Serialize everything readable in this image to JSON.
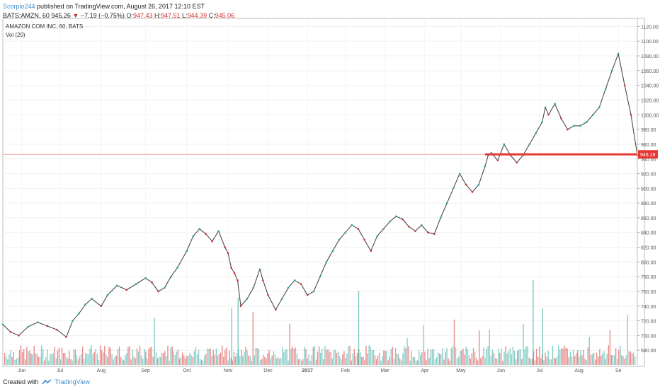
{
  "header": {
    "author": "Scorpio244",
    "published_text": " published on TradingView.com, August 26, 2017 12:10 EST",
    "symbol": "BATS:AMZN, 60",
    "last": "945.26",
    "change_arrow": "▼",
    "change": "−7.19 (−0.75%)",
    "o_label": "O:",
    "o": "947.43",
    "h_label": "H:",
    "h": "947.51",
    "l_label": "L:",
    "l": "944.39",
    "c_label": "C:",
    "c": "945.06"
  },
  "footer": {
    "created_with": "Created with",
    "brand": "TradingView"
  },
  "chart_data": {
    "type": "line",
    "title": "AMAZON COM INC, 60, BATS",
    "volume_label": "Vol (20)",
    "ylim": [
      660,
      1130
    ],
    "y_ticks": [
      680,
      700,
      720,
      740,
      760,
      780,
      800,
      820,
      840,
      860,
      880,
      900,
      920,
      940,
      960,
      980,
      1000,
      1020,
      1040,
      1060,
      1080,
      1100,
      1120
    ],
    "y_tick_labels": [
      "680.00",
      "700.00",
      "720.00",
      "740.00",
      "760.00",
      "780.00",
      "800.00",
      "820.00",
      "840.00",
      "860.00",
      "880.00",
      "900.00",
      "920.00",
      "940.00",
      "960.00",
      "980.00",
      "1000.00",
      "1020.00",
      "1040.00",
      "1060.00",
      "1080.00",
      "1100.00",
      "1120.00"
    ],
    "x_tick_labels": [
      "Jun",
      "Jul",
      "Aug",
      "Sep",
      "Oct",
      "Nov",
      "Dec",
      "2017",
      "Feb",
      "Mar",
      "Apr",
      "May",
      "Jun",
      "Jul",
      "Aug",
      "Se"
    ],
    "x_tick_positions": [
      0.03,
      0.09,
      0.155,
      0.225,
      0.29,
      0.355,
      0.418,
      0.48,
      0.54,
      0.602,
      0.665,
      0.722,
      0.785,
      0.846,
      0.908,
      0.97
    ],
    "series": [
      {
        "x": [
          0,
          0.012,
          0.025,
          0.04,
          0.055,
          0.07,
          0.085,
          0.1,
          0.11,
          0.12,
          0.13,
          0.14,
          0.155,
          0.165,
          0.18,
          0.195,
          0.21,
          0.225,
          0.235,
          0.245,
          0.255,
          0.265,
          0.275,
          0.29,
          0.3,
          0.31,
          0.32,
          0.33,
          0.34,
          0.35,
          0.355,
          0.36,
          0.365,
          0.37,
          0.375,
          0.385,
          0.395,
          0.405,
          0.41,
          0.418,
          0.43,
          0.44,
          0.45,
          0.46,
          0.47,
          0.48,
          0.49,
          0.5,
          0.51,
          0.52,
          0.53,
          0.54,
          0.55,
          0.56,
          0.57,
          0.58,
          0.59,
          0.6,
          0.61,
          0.62,
          0.63,
          0.64,
          0.65,
          0.66,
          0.67,
          0.68,
          0.69,
          0.7,
          0.71,
          0.72,
          0.73,
          0.74,
          0.75,
          0.76,
          0.765,
          0.77,
          0.78,
          0.79,
          0.8,
          0.81,
          0.82,
          0.83,
          0.84,
          0.85,
          0.855,
          0.86,
          0.87,
          0.88,
          0.89,
          0.9,
          0.91,
          0.92,
          0.93,
          0.94,
          0.95,
          0.96,
          0.97,
          0.98,
          0.99,
          1.0
        ],
        "values": [
          715,
          705,
          700,
          712,
          718,
          713,
          708,
          698,
          720,
          730,
          742,
          750,
          740,
          755,
          768,
          762,
          770,
          778,
          772,
          760,
          765,
          780,
          792,
          815,
          835,
          845,
          838,
          828,
          842,
          820,
          812,
          792,
          785,
          775,
          740,
          750,
          765,
          790,
          775,
          755,
          735,
          750,
          765,
          775,
          770,
          755,
          760,
          780,
          800,
          815,
          830,
          840,
          850,
          845,
          830,
          815,
          835,
          845,
          855,
          862,
          858,
          848,
          842,
          850,
          840,
          838,
          860,
          880,
          900,
          920,
          905,
          895,
          905,
          930,
          945,
          948,
          938,
          960,
          945,
          935,
          945,
          960,
          975,
          990,
          1010,
          1000,
          1015,
          995,
          980,
          985,
          985,
          990,
          1000,
          1010,
          1035,
          1060,
          1083,
          1040,
          1000,
          945
        ]
      }
    ],
    "current_price_label": "946.19",
    "current_price": 946.19,
    "support_level": 946.19,
    "grid": true
  },
  "colors": {
    "up": "#26a69a",
    "down": "#d32f2f",
    "price_line": "#e53935",
    "axis": "#9e9e9e",
    "brand": "#3c8dd0"
  }
}
